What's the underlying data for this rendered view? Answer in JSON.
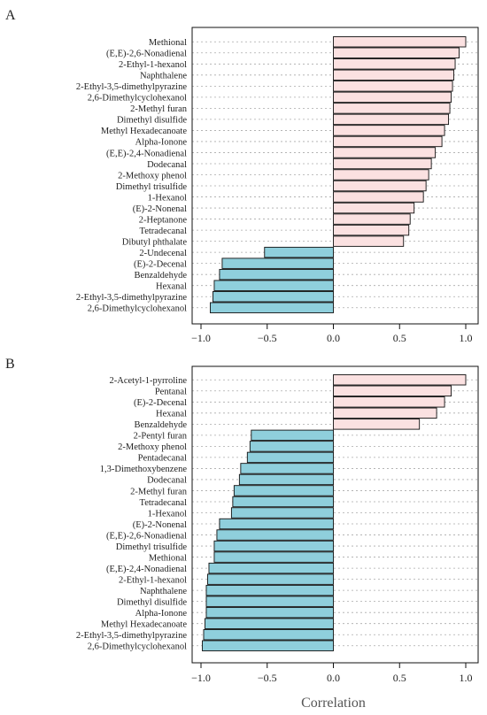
{
  "colors": {
    "positive": "#fbe1e1",
    "negative": "#8fcfdc",
    "stroke": "#111111",
    "grid": "#aaaaaa"
  },
  "xlabel": "Correlation",
  "chart_data": [
    {
      "type": "bar",
      "orientation": "horizontal",
      "panel": "A",
      "xlim": [
        -1.1,
        1.1
      ],
      "ticks": [
        -1.0,
        -0.5,
        0.0,
        0.5,
        1.0
      ],
      "tick_labels": [
        "−1.0",
        "−0.5",
        "0.0",
        "0.5",
        "1.0"
      ],
      "grid": "dotted horizontal guides",
      "categories": [
        "Methional",
        "(E,E)-2,6-Nonadienal",
        "2-Ethyl-1-hexanol",
        "Naphthalene",
        "2-Ethyl-3,5-dimethylpyrazine",
        "2,6-Dimethylcyclohexanol",
        "2-Methyl furan",
        "Dimethyl disulfide",
        "Methyl Hexadecanoate",
        "Alpha-Ionone",
        "(E,E)-2,4-Nonadienal",
        "Dodecanal",
        "2-Methoxy phenol",
        "Dimethyl trisulfide",
        "1-Hexanol",
        "(E)-2-Nonenal",
        "2-Heptanone",
        "Tetradecanal",
        "Dibutyl phthalate",
        "2-Undecenal",
        "(E)-2-Decenal",
        "Benzaldehyde",
        "Hexanal",
        "2-Ethyl-3,5-dimethylpyrazine",
        "2,6-Dimethylcyclohexanol"
      ],
      "values": [
        1.0,
        0.95,
        0.92,
        0.91,
        0.9,
        0.89,
        0.88,
        0.87,
        0.84,
        0.82,
        0.77,
        0.74,
        0.72,
        0.7,
        0.68,
        0.61,
        0.58,
        0.57,
        0.53,
        -0.52,
        -0.84,
        -0.86,
        -0.9,
        -0.91,
        -0.93
      ]
    },
    {
      "type": "bar",
      "orientation": "horizontal",
      "panel": "B",
      "xlim": [
        -1.1,
        1.1
      ],
      "ticks": [
        -1.0,
        -0.5,
        0.0,
        0.5,
        1.0
      ],
      "tick_labels": [
        "−1.0",
        "−0.5",
        "0.0",
        "0.5",
        "1.0"
      ],
      "grid": "dotted horizontal guides",
      "categories": [
        "2-Acetyl-1-pyrroline",
        "Pentanal",
        "(E)-2-Decenal",
        "Hexanal",
        "Benzaldehyde",
        "2-Pentyl furan",
        "2-Methoxy phenol",
        "Pentadecanal",
        "1,3-Dimethoxybenzene",
        "Dodecanal",
        "2-Methyl furan",
        "Tetradecanal",
        "1-Hexanol",
        "(E)-2-Nonenal",
        "(E,E)-2,6-Nonadienal",
        "Dimethyl trisulfide",
        "Methional",
        "(E,E)-2,4-Nonadienal",
        "2-Ethyl-1-hexanol",
        "Naphthalene",
        "Dimethyl disulfide",
        "Alpha-Ionone",
        "Methyl Hexadecanoate",
        "2-Ethyl-3,5-dimethylpyrazine",
        "2,6-Dimethylcyclohexanol"
      ],
      "values": [
        1.0,
        0.89,
        0.84,
        0.78,
        0.65,
        -0.62,
        -0.63,
        -0.65,
        -0.7,
        -0.71,
        -0.75,
        -0.76,
        -0.77,
        -0.86,
        -0.88,
        -0.9,
        -0.9,
        -0.94,
        -0.95,
        -0.96,
        -0.96,
        -0.96,
        -0.97,
        -0.98,
        -0.99
      ]
    }
  ]
}
